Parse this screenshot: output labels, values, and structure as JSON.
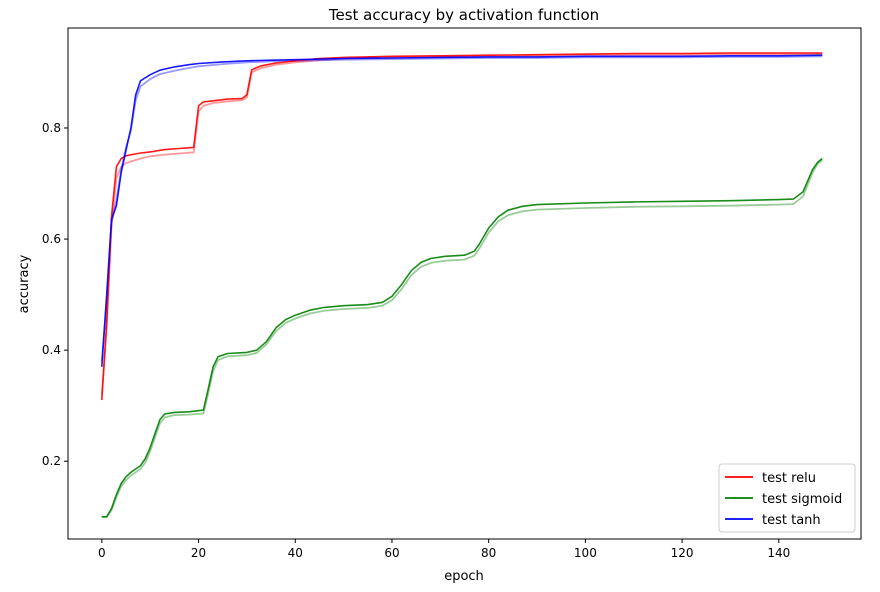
{
  "chart_data": {
    "type": "line",
    "title": "Test accuracy by activation function",
    "xlabel": "epoch",
    "ylabel": "accuracy",
    "xlim": [
      -7,
      157
    ],
    "ylim": [
      0.06,
      0.98
    ],
    "xticks": [
      0,
      20,
      40,
      60,
      80,
      100,
      120,
      140
    ],
    "yticks": [
      0.2,
      0.4,
      0.6,
      0.8
    ],
    "ytick_labels": [
      "0.2",
      "0.4",
      "0.6",
      "0.8"
    ],
    "grid": false,
    "legend_position": "lower-right",
    "series": [
      {
        "name": "test relu",
        "color": "#ff0000",
        "points": [
          [
            0,
            0.31
          ],
          [
            1,
            0.45
          ],
          [
            2,
            0.64
          ],
          [
            3,
            0.73
          ],
          [
            4,
            0.745
          ],
          [
            5,
            0.75
          ],
          [
            8,
            0.755
          ],
          [
            10,
            0.757
          ],
          [
            13,
            0.761
          ],
          [
            16,
            0.763
          ],
          [
            19,
            0.765
          ],
          [
            20,
            0.84
          ],
          [
            21,
            0.847
          ],
          [
            23,
            0.849
          ],
          [
            26,
            0.852
          ],
          [
            29,
            0.853
          ],
          [
            30,
            0.86
          ],
          [
            31,
            0.905
          ],
          [
            33,
            0.912
          ],
          [
            36,
            0.917
          ],
          [
            40,
            0.921
          ],
          [
            45,
            0.925
          ],
          [
            50,
            0.927
          ],
          [
            60,
            0.929
          ],
          [
            70,
            0.93
          ],
          [
            80,
            0.931
          ],
          [
            90,
            0.932
          ],
          [
            100,
            0.933
          ],
          [
            110,
            0.934
          ],
          [
            120,
            0.934
          ],
          [
            130,
            0.935
          ],
          [
            140,
            0.935
          ],
          [
            149,
            0.935
          ]
        ],
        "ghost_points": [
          [
            0,
            0.32
          ],
          [
            1,
            0.44
          ],
          [
            2,
            0.62
          ],
          [
            3,
            0.71
          ],
          [
            4,
            0.73
          ],
          [
            5,
            0.737
          ],
          [
            8,
            0.745
          ],
          [
            10,
            0.749
          ],
          [
            13,
            0.752
          ],
          [
            16,
            0.754
          ],
          [
            19,
            0.756
          ],
          [
            20,
            0.83
          ],
          [
            21,
            0.84
          ],
          [
            23,
            0.845
          ],
          [
            26,
            0.848
          ],
          [
            29,
            0.85
          ],
          [
            30,
            0.855
          ],
          [
            31,
            0.9
          ],
          [
            33,
            0.908
          ],
          [
            36,
            0.914
          ],
          [
            40,
            0.918
          ],
          [
            45,
            0.922
          ],
          [
            50,
            0.925
          ],
          [
            60,
            0.927
          ],
          [
            70,
            0.928
          ],
          [
            80,
            0.929
          ],
          [
            90,
            0.93
          ],
          [
            100,
            0.931
          ],
          [
            110,
            0.932
          ],
          [
            120,
            0.932
          ],
          [
            130,
            0.933
          ],
          [
            140,
            0.933
          ],
          [
            149,
            0.933
          ]
        ]
      },
      {
        "name": "test sigmoid",
        "color": "#008000",
        "points": [
          [
            0,
            0.1
          ],
          [
            1,
            0.1
          ],
          [
            2,
            0.115
          ],
          [
            3,
            0.14
          ],
          [
            4,
            0.16
          ],
          [
            5,
            0.172
          ],
          [
            6,
            0.18
          ],
          [
            7,
            0.186
          ],
          [
            8,
            0.192
          ],
          [
            9,
            0.205
          ],
          [
            10,
            0.225
          ],
          [
            11,
            0.25
          ],
          [
            12,
            0.275
          ],
          [
            13,
            0.285
          ],
          [
            15,
            0.288
          ],
          [
            18,
            0.289
          ],
          [
            21,
            0.292
          ],
          [
            22,
            0.33
          ],
          [
            23,
            0.37
          ],
          [
            24,
            0.388
          ],
          [
            26,
            0.394
          ],
          [
            30,
            0.396
          ],
          [
            32,
            0.4
          ],
          [
            34,
            0.415
          ],
          [
            36,
            0.44
          ],
          [
            38,
            0.455
          ],
          [
            40,
            0.463
          ],
          [
            43,
            0.472
          ],
          [
            46,
            0.477
          ],
          [
            50,
            0.48
          ],
          [
            55,
            0.482
          ],
          [
            58,
            0.486
          ],
          [
            60,
            0.497
          ],
          [
            62,
            0.518
          ],
          [
            64,
            0.543
          ],
          [
            66,
            0.558
          ],
          [
            68,
            0.565
          ],
          [
            71,
            0.569
          ],
          [
            75,
            0.571
          ],
          [
            77,
            0.578
          ],
          [
            78,
            0.59
          ],
          [
            80,
            0.62
          ],
          [
            82,
            0.64
          ],
          [
            84,
            0.652
          ],
          [
            87,
            0.659
          ],
          [
            90,
            0.662
          ],
          [
            100,
            0.665
          ],
          [
            110,
            0.667
          ],
          [
            120,
            0.668
          ],
          [
            130,
            0.669
          ],
          [
            140,
            0.671
          ],
          [
            143,
            0.672
          ],
          [
            145,
            0.685
          ],
          [
            146,
            0.705
          ],
          [
            147,
            0.725
          ],
          [
            148,
            0.738
          ],
          [
            149,
            0.745
          ]
        ],
        "ghost_points": [
          [
            0,
            0.1
          ],
          [
            1,
            0.1
          ],
          [
            2,
            0.112
          ],
          [
            3,
            0.135
          ],
          [
            4,
            0.155
          ],
          [
            5,
            0.166
          ],
          [
            6,
            0.174
          ],
          [
            7,
            0.18
          ],
          [
            8,
            0.186
          ],
          [
            9,
            0.198
          ],
          [
            10,
            0.218
          ],
          [
            11,
            0.243
          ],
          [
            12,
            0.268
          ],
          [
            13,
            0.279
          ],
          [
            15,
            0.283
          ],
          [
            18,
            0.284
          ],
          [
            21,
            0.286
          ],
          [
            22,
            0.322
          ],
          [
            23,
            0.362
          ],
          [
            24,
            0.382
          ],
          [
            26,
            0.389
          ],
          [
            30,
            0.391
          ],
          [
            32,
            0.395
          ],
          [
            34,
            0.41
          ],
          [
            36,
            0.434
          ],
          [
            38,
            0.449
          ],
          [
            40,
            0.457
          ],
          [
            43,
            0.466
          ],
          [
            46,
            0.471
          ],
          [
            50,
            0.474
          ],
          [
            55,
            0.476
          ],
          [
            58,
            0.48
          ],
          [
            60,
            0.49
          ],
          [
            62,
            0.51
          ],
          [
            64,
            0.535
          ],
          [
            66,
            0.55
          ],
          [
            68,
            0.557
          ],
          [
            71,
            0.561
          ],
          [
            75,
            0.563
          ],
          [
            77,
            0.57
          ],
          [
            78,
            0.582
          ],
          [
            80,
            0.612
          ],
          [
            82,
            0.632
          ],
          [
            84,
            0.643
          ],
          [
            87,
            0.65
          ],
          [
            90,
            0.653
          ],
          [
            100,
            0.656
          ],
          [
            110,
            0.658
          ],
          [
            120,
            0.659
          ],
          [
            130,
            0.66
          ],
          [
            140,
            0.662
          ],
          [
            143,
            0.663
          ],
          [
            145,
            0.677
          ],
          [
            146,
            0.698
          ],
          [
            147,
            0.72
          ],
          [
            148,
            0.735
          ],
          [
            149,
            0.742
          ]
        ]
      },
      {
        "name": "test tanh",
        "color": "#0000ff",
        "points": [
          [
            0,
            0.37
          ],
          [
            1,
            0.5
          ],
          [
            2,
            0.635
          ],
          [
            3,
            0.66
          ],
          [
            4,
            0.72
          ],
          [
            5,
            0.76
          ],
          [
            6,
            0.8
          ],
          [
            7,
            0.86
          ],
          [
            8,
            0.885
          ],
          [
            10,
            0.896
          ],
          [
            12,
            0.904
          ],
          [
            15,
            0.91
          ],
          [
            18,
            0.914
          ],
          [
            20,
            0.916
          ],
          [
            25,
            0.919
          ],
          [
            30,
            0.921
          ],
          [
            35,
            0.922
          ],
          [
            40,
            0.923
          ],
          [
            50,
            0.925
          ],
          [
            60,
            0.926
          ],
          [
            70,
            0.927
          ],
          [
            80,
            0.928
          ],
          [
            90,
            0.928
          ],
          [
            100,
            0.929
          ],
          [
            110,
            0.929
          ],
          [
            120,
            0.929
          ],
          [
            130,
            0.93
          ],
          [
            140,
            0.93
          ],
          [
            149,
            0.931
          ]
        ],
        "ghost_points": [
          [
            0,
            0.38
          ],
          [
            1,
            0.49
          ],
          [
            2,
            0.63
          ],
          [
            3,
            0.67
          ],
          [
            4,
            0.725
          ],
          [
            5,
            0.765
          ],
          [
            6,
            0.795
          ],
          [
            7,
            0.85
          ],
          [
            8,
            0.875
          ],
          [
            10,
            0.888
          ],
          [
            12,
            0.897
          ],
          [
            15,
            0.903
          ],
          [
            18,
            0.908
          ],
          [
            20,
            0.911
          ],
          [
            25,
            0.915
          ],
          [
            30,
            0.918
          ],
          [
            35,
            0.92
          ],
          [
            40,
            0.921
          ],
          [
            50,
            0.923
          ],
          [
            60,
            0.924
          ],
          [
            70,
            0.925
          ],
          [
            80,
            0.926
          ],
          [
            90,
            0.926
          ],
          [
            100,
            0.927
          ],
          [
            110,
            0.927
          ],
          [
            120,
            0.927
          ],
          [
            130,
            0.928
          ],
          [
            140,
            0.928
          ],
          [
            149,
            0.929
          ]
        ]
      }
    ]
  }
}
